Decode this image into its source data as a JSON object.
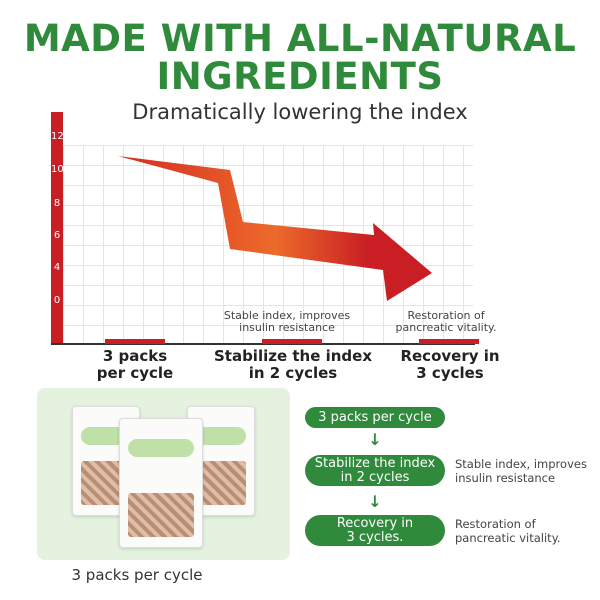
{
  "title_line1": "MADE WITH ALL-NATURAL",
  "title_line2": "INGREDIENTS",
  "subtitle": "Dramatically lowering the index",
  "chart": {
    "y_ticks": [
      "12",
      "10",
      "8",
      "6",
      "4",
      "0"
    ],
    "x_labels": [
      {
        "l1": "3 packs",
        "l2": "per cycle"
      },
      {
        "l1": "Stabilize the index",
        "l2": "in 2 cycles"
      },
      {
        "l1": "Recovery in",
        "l2": "3 cycles"
      }
    ],
    "annotations": [
      {
        "l1": "Stable index, improves",
        "l2": "insulin resistance"
      },
      {
        "l1": "Restoration of",
        "l2": "pancreatic vitality."
      }
    ],
    "accent": "#c81e24"
  },
  "product_caption": "3 packs per cycle",
  "flow": {
    "steps": [
      {
        "l1": "3 packs per cycle",
        "l2": ""
      },
      {
        "l1": "Stabilize the index",
        "l2": "in 2 cycles"
      },
      {
        "l1": "Recovery in",
        "l2": "3 cycles."
      }
    ],
    "notes": [
      {
        "l1": "Stable index, improves",
        "l2": "insulin resistance"
      },
      {
        "l1": "Restoration of",
        "l2": "pancreatic vitality."
      }
    ],
    "color": "#2f8a3b"
  }
}
